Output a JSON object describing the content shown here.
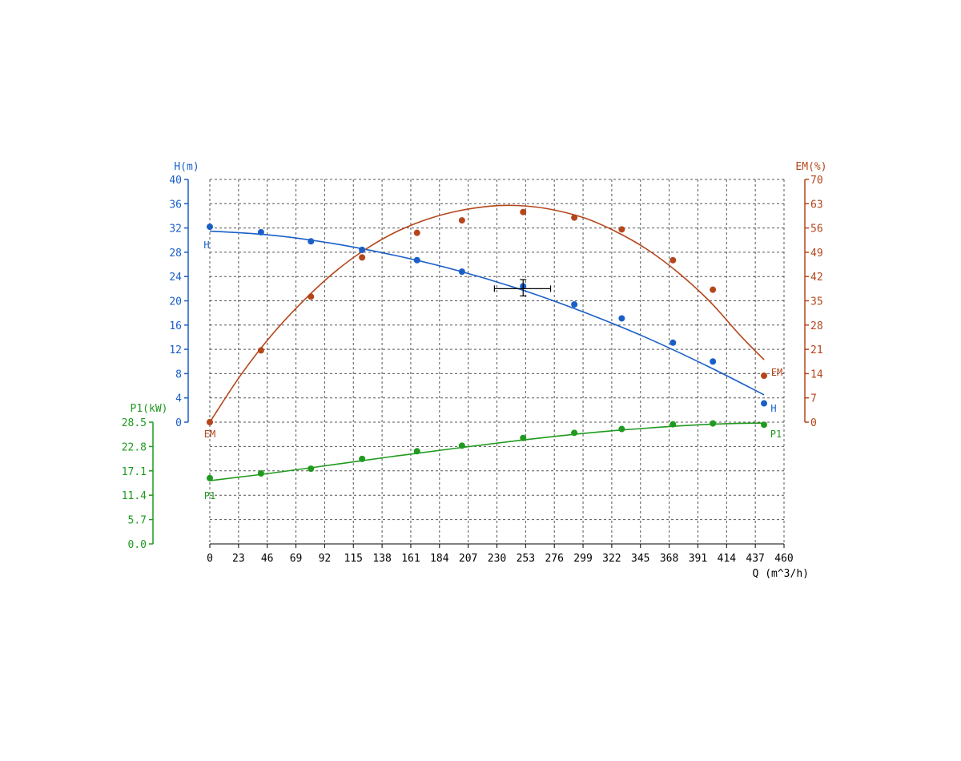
{
  "chart_data": {
    "type": "line",
    "x_axis": {
      "label": "Q (m^3/h)",
      "range": [
        0,
        460
      ],
      "ticks": [
        "0",
        "23",
        "46",
        "69",
        "92",
        "115",
        "138",
        "161",
        "184",
        "207",
        "230",
        "253",
        "276",
        "299",
        "322",
        "345",
        "368",
        "391",
        "414",
        "437",
        "460"
      ]
    },
    "y_axes": {
      "H": {
        "label": "H(m)",
        "range": [
          0,
          40
        ],
        "ticks": [
          "0",
          "4",
          "8",
          "12",
          "16",
          "20",
          "24",
          "28",
          "32",
          "36",
          "40"
        ],
        "color": "#1a5fc8",
        "side": "left"
      },
      "EM": {
        "label": "EM(%)",
        "range": [
          0,
          70
        ],
        "ticks": [
          "0",
          "7",
          "14",
          "21",
          "28",
          "35",
          "42",
          "49",
          "56",
          "63",
          "70"
        ],
        "color": "#b5451b",
        "side": "right"
      },
      "P1": {
        "label": "P1(kW)",
        "range": [
          0,
          28.5
        ],
        "ticks": [
          "0.0",
          "5.7",
          "11.4",
          "17.1",
          "22.8",
          "28.5"
        ],
        "color": "#1f9a1f",
        "side": "left"
      }
    },
    "grid": true,
    "series": [
      {
        "name": "H",
        "axis": "H",
        "color": "#1a5fc8",
        "points": [
          [
            0,
            32.2
          ],
          [
            41,
            31.3
          ],
          [
            81,
            29.8
          ],
          [
            122,
            28.4
          ],
          [
            166,
            26.7
          ],
          [
            202,
            24.8
          ],
          [
            251,
            22.4
          ],
          [
            292,
            19.4
          ],
          [
            330,
            17.1
          ],
          [
            371,
            13.1
          ],
          [
            403,
            10.0
          ],
          [
            444,
            3.1
          ]
        ],
        "fit": [
          [
            0,
            31.5
          ],
          [
            50,
            30.8
          ],
          [
            100,
            29.4
          ],
          [
            150,
            27.4
          ],
          [
            200,
            24.9
          ],
          [
            250,
            21.8
          ],
          [
            300,
            18.1
          ],
          [
            350,
            13.9
          ],
          [
            400,
            9.1
          ],
          [
            444,
            4.5
          ]
        ],
        "start_label": "H",
        "end_label": "H"
      },
      {
        "name": "EM",
        "axis": "EM",
        "color": "#b5451b",
        "points": [
          [
            0,
            0
          ],
          [
            41,
            20.7
          ],
          [
            81,
            36.2
          ],
          [
            122,
            47.5
          ],
          [
            166,
            54.6
          ],
          [
            202,
            58.2
          ],
          [
            251,
            60.6
          ],
          [
            292,
            59.0
          ],
          [
            330,
            55.6
          ],
          [
            371,
            46.7
          ],
          [
            403,
            38.2
          ],
          [
            444,
            13.4
          ]
        ],
        "fit": [
          [
            0,
            0
          ],
          [
            25,
            13.7
          ],
          [
            50,
            25.3
          ],
          [
            75,
            35.0
          ],
          [
            100,
            43.3
          ],
          [
            125,
            49.9
          ],
          [
            150,
            55.0
          ],
          [
            175,
            58.6
          ],
          [
            200,
            61.0
          ],
          [
            225,
            62.3
          ],
          [
            245,
            62.5
          ],
          [
            270,
            61.6
          ],
          [
            300,
            58.9
          ],
          [
            325,
            55.0
          ],
          [
            350,
            49.9
          ],
          [
            375,
            43.2
          ],
          [
            400,
            35.0
          ],
          [
            425,
            25.0
          ],
          [
            444,
            18.0
          ]
        ],
        "start_label": "EM",
        "end_label": "EM"
      },
      {
        "name": "P1",
        "axis": "P1",
        "color": "#1f9a1f",
        "points": [
          [
            0,
            15.4
          ],
          [
            41,
            16.5
          ],
          [
            81,
            17.6
          ],
          [
            122,
            19.9
          ],
          [
            166,
            21.7
          ],
          [
            202,
            23.0
          ],
          [
            251,
            24.8
          ],
          [
            292,
            26.0
          ],
          [
            330,
            26.9
          ],
          [
            371,
            28.0
          ],
          [
            403,
            28.2
          ],
          [
            444,
            27.9
          ]
        ],
        "fit": [
          [
            0,
            14.8
          ],
          [
            50,
            16.6
          ],
          [
            100,
            18.6
          ],
          [
            150,
            20.6
          ],
          [
            200,
            22.5
          ],
          [
            250,
            24.3
          ],
          [
            300,
            25.9
          ],
          [
            350,
            27.1
          ],
          [
            400,
            28.0
          ],
          [
            444,
            28.3
          ]
        ],
        "start_label": "P1",
        "end_label": "P1"
      }
    ],
    "operating_point": {
      "x": 251,
      "H": 22.0,
      "x_range": [
        228,
        273
      ],
      "H_range": [
        20.8,
        23.5
      ]
    }
  }
}
